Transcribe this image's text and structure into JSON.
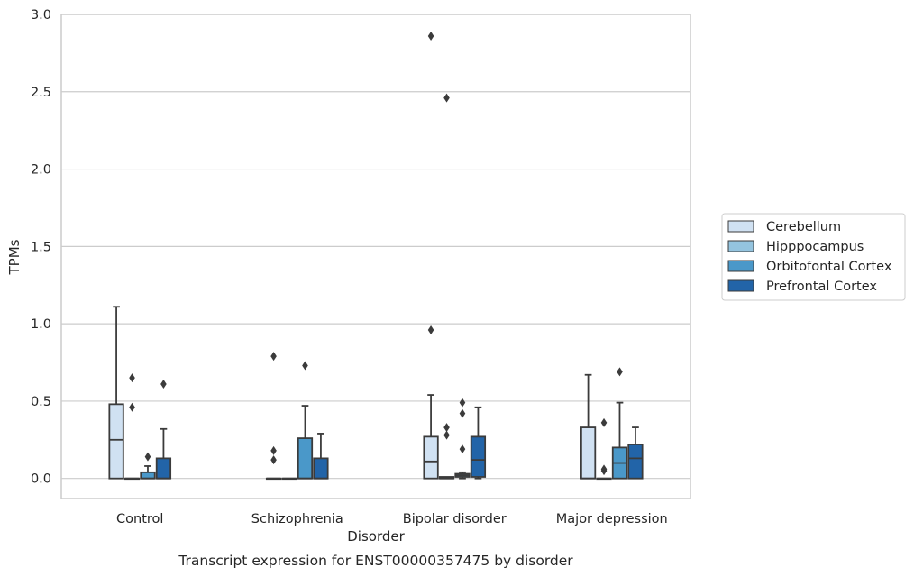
{
  "chart_data": {
    "type": "box",
    "title": "",
    "caption": "Transcript expression for ENST00000357475 by disorder",
    "xlabel": "Disorder",
    "ylabel": "TPMs",
    "ylim": [
      -0.13,
      3.0
    ],
    "yticks": [
      "0.0",
      "0.5",
      "1.0",
      "1.5",
      "2.0",
      "2.5",
      "3.0"
    ],
    "grid": true,
    "legend_position": "right",
    "categories": [
      "Control",
      "Schizophrenia",
      "Bipolar disorder",
      "Major depression"
    ],
    "series": [
      {
        "name": "Cerebellum",
        "color": "#d0e1f2",
        "boxes": [
          {
            "whislo": 0.0,
            "q1": 0.0,
            "med": 0.25,
            "q3": 0.48,
            "whishi": 1.11,
            "fliers": []
          },
          {
            "whislo": 0.0,
            "q1": 0.0,
            "med": 0.0,
            "q3": 0.0,
            "whishi": 0.0,
            "fliers": [
              0.12,
              0.18,
              0.79
            ]
          },
          {
            "whislo": 0.0,
            "q1": 0.0,
            "med": 0.11,
            "q3": 0.27,
            "whishi": 0.54,
            "fliers": [
              0.96,
              2.86
            ]
          },
          {
            "whislo": 0.0,
            "q1": 0.0,
            "med": 0.0,
            "q3": 0.33,
            "whishi": 0.67,
            "fliers": []
          }
        ]
      },
      {
        "name": "Hipppocampus",
        "color": "#94c4df",
        "boxes": [
          {
            "whislo": 0.0,
            "q1": 0.0,
            "med": 0.0,
            "q3": 0.0,
            "whishi": 0.0,
            "fliers": [
              0.46,
              0.65
            ]
          },
          {
            "whislo": 0.0,
            "q1": 0.0,
            "med": 0.0,
            "q3": 0.0,
            "whishi": 0.0,
            "fliers": []
          },
          {
            "whislo": 0.0,
            "q1": 0.0,
            "med": 0.0,
            "q3": 0.01,
            "whishi": 0.01,
            "fliers": [
              0.28,
              0.33,
              2.46
            ]
          },
          {
            "whislo": 0.0,
            "q1": 0.0,
            "med": 0.0,
            "q3": 0.0,
            "whishi": 0.0,
            "fliers": [
              0.05,
              0.06,
              0.36
            ]
          }
        ]
      },
      {
        "name": "Orbitofontal Cortex",
        "color": "#4a98c9",
        "boxes": [
          {
            "whislo": 0.0,
            "q1": 0.0,
            "med": 0.0,
            "q3": 0.04,
            "whishi": 0.08,
            "fliers": [
              0.14
            ]
          },
          {
            "whislo": 0.0,
            "q1": 0.0,
            "med": 0.0,
            "q3": 0.26,
            "whishi": 0.47,
            "fliers": [
              0.73
            ]
          },
          {
            "whislo": 0.0,
            "q1": 0.01,
            "med": 0.02,
            "q3": 0.03,
            "whishi": 0.04,
            "fliers": [
              0.19,
              0.42,
              0.49
            ]
          },
          {
            "whislo": 0.0,
            "q1": 0.0,
            "med": 0.1,
            "q3": 0.2,
            "whishi": 0.49,
            "fliers": [
              0.69
            ]
          }
        ]
      },
      {
        "name": "Prefrontal Cortex",
        "color": "#2264a8",
        "boxes": [
          {
            "whislo": 0.0,
            "q1": 0.0,
            "med": 0.0,
            "q3": 0.13,
            "whishi": 0.32,
            "fliers": [
              0.61
            ]
          },
          {
            "whislo": 0.0,
            "q1": 0.0,
            "med": 0.0,
            "q3": 0.13,
            "whishi": 0.29,
            "fliers": []
          },
          {
            "whislo": 0.0,
            "q1": 0.01,
            "med": 0.12,
            "q3": 0.27,
            "whishi": 0.46,
            "fliers": []
          },
          {
            "whislo": 0.0,
            "q1": 0.0,
            "med": 0.13,
            "q3": 0.22,
            "whishi": 0.33,
            "fliers": []
          }
        ]
      }
    ]
  }
}
